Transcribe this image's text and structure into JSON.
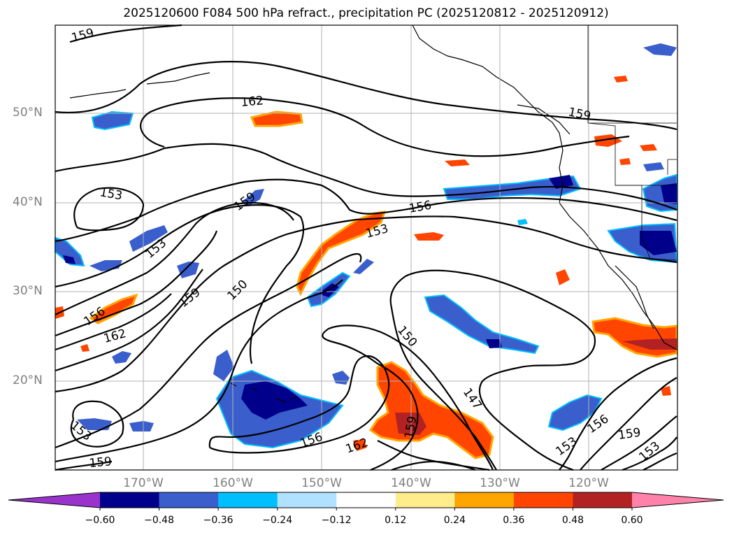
{
  "title": "2025120600 F084 500 hPa refract., precipitation PC (2025120812 - 2025120912)",
  "latitude_labels": [
    "50°N",
    "40°N",
    "30°N",
    "20°N"
  ],
  "longitude_labels": [
    "170°W",
    "160°W",
    "150°W",
    "140°W",
    "130°W",
    "120°W"
  ],
  "contour_labels": [
    "159",
    "162",
    "159",
    "153",
    "159",
    "156",
    "153",
    "153",
    "159",
    "150",
    "156",
    "162",
    "150",
    "147",
    "156",
    "153",
    "156",
    "159",
    "153",
    "159",
    "162",
    "159"
  ],
  "colorbar": {
    "tick_labels": [
      "−0.60",
      "−0.48",
      "−0.36",
      "−0.24",
      "−0.12",
      "0.12",
      "0.24",
      "0.36",
      "0.48",
      "0.60"
    ],
    "colors": [
      "#9933cc",
      "#00008b",
      "#3a5fcd",
      "#00bfff",
      "#b0e2ff",
      "#ffffff",
      "#ffec8b",
      "#ffa500",
      "#ff4500",
      "#b22222",
      "#ff82ab"
    ]
  }
}
